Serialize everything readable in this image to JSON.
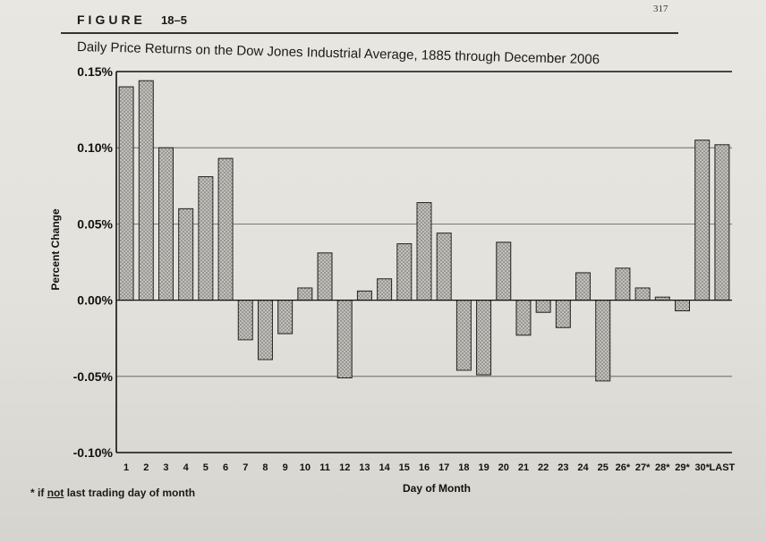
{
  "page": {
    "page_number": "317",
    "figure_label": "FIGURE",
    "figure_number": "18–5",
    "footnote_marker": "* if",
    "footnote_underlined": "not",
    "footnote_rest": "last trading day of month"
  },
  "colors": {
    "bar_fill": "#9a9894",
    "bar_stroke": "#222222",
    "gridline": "#555555",
    "axis": "#111111"
  },
  "chart_data": {
    "type": "bar",
    "title": "Daily Price Returns on the Dow Jones Industrial Average, 1885 through December 2006",
    "xlabel": "Day of Month",
    "ylabel": "Percent Change",
    "ylim": [
      -0.1,
      0.15
    ],
    "yticks": [
      0.15,
      0.1,
      0.05,
      0.0,
      -0.05,
      -0.1
    ],
    "ytick_labels": [
      "0.15%",
      "0.10%",
      "0.05%",
      "0.00%",
      "-0.05%",
      "-0.10%"
    ],
    "grid": true,
    "categories": [
      "1",
      "2",
      "3",
      "4",
      "5",
      "6",
      "7",
      "8",
      "9",
      "10",
      "11",
      "12",
      "13",
      "14",
      "15",
      "16",
      "17",
      "18",
      "19",
      "20",
      "21",
      "22",
      "23",
      "24",
      "25",
      "26*",
      "27*",
      "28*",
      "29*",
      "30*",
      "LAST"
    ],
    "values": [
      0.14,
      0.144,
      0.1,
      0.06,
      0.081,
      0.093,
      -0.026,
      -0.039,
      -0.022,
      0.008,
      0.031,
      -0.051,
      0.006,
      0.014,
      0.037,
      0.064,
      0.044,
      -0.046,
      -0.049,
      0.038,
      -0.023,
      -0.008,
      -0.018,
      0.018,
      -0.053,
      0.021,
      0.008,
      0.002,
      -0.007,
      0.105,
      0.102
    ]
  }
}
